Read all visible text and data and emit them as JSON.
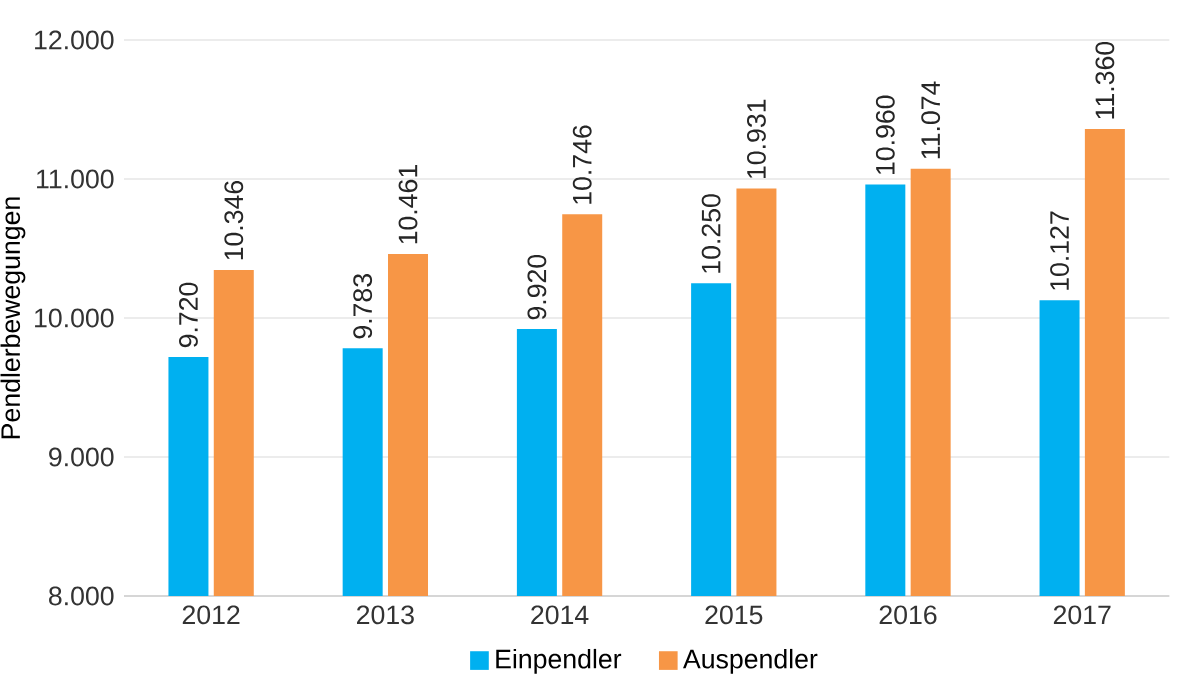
{
  "chart_data": {
    "type": "bar",
    "ylabel": "Pendlerbewegungen",
    "categories": [
      "2012",
      "2013",
      "2014",
      "2015",
      "2016",
      "2017"
    ],
    "series": [
      {
        "name": "Einpendler",
        "color": "#00b0f0",
        "values": [
          9720,
          9783,
          9920,
          10250,
          10960,
          10127
        ],
        "value_labels": [
          "9.720",
          "9.783",
          "9.920",
          "10.250",
          "10.960",
          "10.127"
        ]
      },
      {
        "name": "Auspendler",
        "color": "#f79646",
        "values": [
          10346,
          10461,
          10746,
          10931,
          11074,
          11360
        ],
        "value_labels": [
          "10.346",
          "10.461",
          "10.746",
          "10.931",
          "11.074",
          "11.360"
        ]
      }
    ],
    "ylim": [
      8000,
      12000
    ],
    "yticks": [
      {
        "value": 8000,
        "label": "8.000"
      },
      {
        "value": 9000,
        "label": "9.000"
      },
      {
        "value": 10000,
        "label": "10.000"
      },
      {
        "value": 11000,
        "label": "11.000"
      },
      {
        "value": 12000,
        "label": "12.000"
      }
    ],
    "grid": "y",
    "legend": "bottom"
  }
}
